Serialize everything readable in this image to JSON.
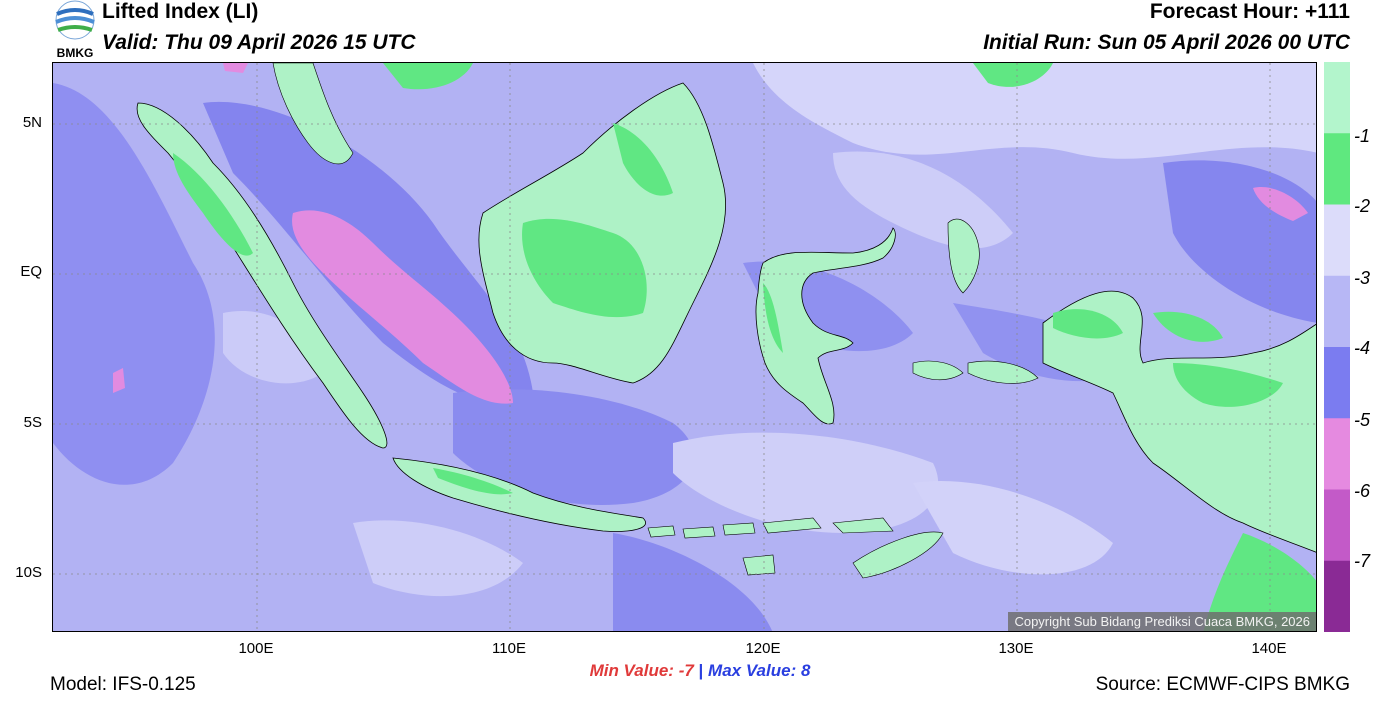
{
  "header": {
    "title": "Lifted Index (LI)",
    "valid": "Valid: Thu 09 April 2026 15 UTC",
    "forecast_hour": "Forecast Hour: +111",
    "initial_run": "Initial Run: Sun 05 April 2026 00 UTC",
    "logo_text": "BMKG"
  },
  "map": {
    "lat_labels": [
      "5N",
      "EQ",
      "5S",
      "10S"
    ],
    "lon_labels": [
      "100E",
      "110E",
      "120E",
      "130E",
      "140E"
    ],
    "copyright": "Copyright Sub Bidang Prediksi Cuaca BMKG, 2026"
  },
  "colorbar": {
    "ticks": [
      "-1",
      "-2",
      "-3",
      "-4",
      "-5",
      "-6",
      "-7"
    ],
    "colors": [
      "#b3f5cc",
      "#5fe87f",
      "#dcdcfa",
      "#b7b7f5",
      "#7b7cf0",
      "#e58ae0",
      "#c35ac8",
      "#8a2a95"
    ]
  },
  "footer": {
    "min_label": "Min Value:",
    "min_value": "-7",
    "separator": "|",
    "max_label": "Max Value:",
    "max_value": "8",
    "model": "Model: IFS-0.125",
    "source": "Source: ECMWF-CIPS BMKG"
  }
}
